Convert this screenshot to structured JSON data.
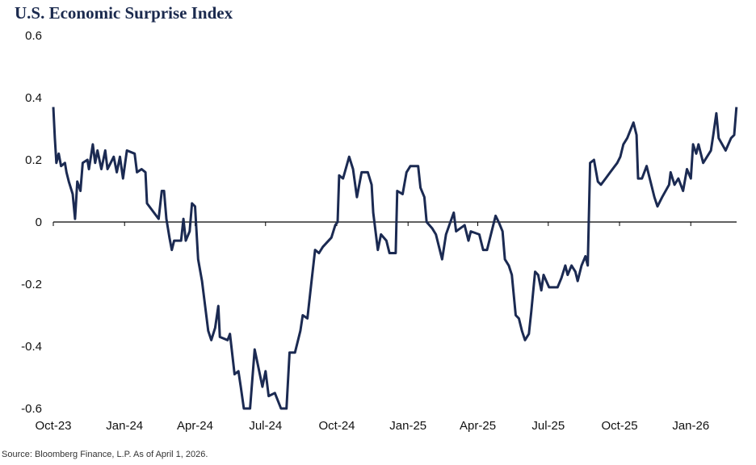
{
  "chart_data": {
    "type": "line",
    "title": "U.S. Economic Surprise Index",
    "source": "Source: Bloomberg Finance, L.P. As of April 1, 2026.",
    "ylim": [
      -0.6,
      0.6
    ],
    "yticks": [
      0.6,
      0.4,
      0.2,
      0,
      -0.2,
      -0.4,
      -0.6
    ],
    "ytick_labels": [
      "0.6",
      "0.4",
      "0.2",
      "0",
      "-0.2",
      "-0.4",
      "-0.6"
    ],
    "xticks": [
      "2023-10-01",
      "2024-01-01",
      "2024-04-01",
      "2024-07-01",
      "2024-10-01",
      "2025-01-01",
      "2025-04-01",
      "2025-07-01",
      "2025-10-01",
      "2026-01-01"
    ],
    "xtick_labels": [
      "Oct-23",
      "Jan-24",
      "Apr-24",
      "Jul-24",
      "Oct-24",
      "Jan-25",
      "Apr-25",
      "Jul-25",
      "Oct-25",
      "Jan-26"
    ],
    "grid": false,
    "line_color": "#1b2a52",
    "series": [
      {
        "x": [
          "2023-10-01",
          "2023-10-03",
          "2023-10-05",
          "2023-10-08",
          "2023-10-11",
          "2023-10-16",
          "2023-10-18",
          "2023-10-21",
          "2023-10-26",
          "2023-10-29",
          "2023-11-01",
          "2023-11-05",
          "2023-11-08",
          "2023-11-14",
          "2023-11-16",
          "2023-11-21",
          "2023-11-24",
          "2023-11-27",
          "2023-12-02",
          "2023-12-07",
          "2023-12-10",
          "2023-12-14",
          "2023-12-18",
          "2023-12-22",
          "2023-12-26",
          "2023-12-30",
          "2024-01-04",
          "2024-01-14",
          "2024-01-17",
          "2024-01-23",
          "2024-01-28",
          "2024-01-30",
          "2024-02-05",
          "2024-02-14",
          "2024-02-18",
          "2024-02-21",
          "2024-02-24",
          "2024-02-28",
          "2024-03-02",
          "2024-03-05",
          "2024-03-14",
          "2024-03-17",
          "2024-03-20",
          "2024-03-25",
          "2024-03-28",
          "2024-04-01",
          "2024-04-05",
          "2024-04-10",
          "2024-04-15",
          "2024-04-18",
          "2024-04-22",
          "2024-04-27",
          "2024-05-01",
          "2024-05-03",
          "2024-05-13",
          "2024-05-16",
          "2024-05-22",
          "2024-05-27",
          "2024-05-30",
          "2024-06-03",
          "2024-06-11",
          "2024-06-17",
          "2024-06-22",
          "2024-06-27",
          "2024-07-01",
          "2024-07-05",
          "2024-07-13",
          "2024-07-21",
          "2024-07-28",
          "2024-08-01",
          "2024-08-08",
          "2024-08-15",
          "2024-08-18",
          "2024-08-24",
          "2024-08-29",
          "2024-09-03",
          "2024-09-08",
          "2024-09-13",
          "2024-09-24",
          "2024-09-29",
          "2024-10-02",
          "2024-10-04",
          "2024-10-09",
          "2024-10-17",
          "2024-10-22",
          "2024-10-27",
          "2024-11-02",
          "2024-11-10",
          "2024-11-15",
          "2024-11-17",
          "2024-11-23",
          "2024-11-27",
          "2024-12-04",
          "2024-12-08",
          "2024-12-16",
          "2024-12-18",
          "2024-12-25",
          "2024-12-30",
          "2025-01-04",
          "2025-01-14",
          "2025-01-17",
          "2025-01-22",
          "2025-01-25",
          "2025-02-01",
          "2025-02-06",
          "2025-02-14",
          "2025-02-19",
          "2025-03-01",
          "2025-03-04",
          "2025-03-15",
          "2025-03-20",
          "2025-03-23",
          "2025-04-03",
          "2025-04-08",
          "2025-04-13",
          "2025-04-18",
          "2025-04-24",
          "2025-04-28",
          "2025-05-03",
          "2025-05-06",
          "2025-05-11",
          "2025-05-15",
          "2025-05-20",
          "2025-05-24",
          "2025-05-28",
          "2025-06-01",
          "2025-06-06",
          "2025-06-09",
          "2025-06-14",
          "2025-06-18",
          "2025-06-22",
          "2025-06-25",
          "2025-07-02",
          "2025-07-13",
          "2025-07-18",
          "2025-07-23",
          "2025-07-26",
          "2025-07-31",
          "2025-08-05",
          "2025-08-08",
          "2025-08-13",
          "2025-08-18",
          "2025-08-21",
          "2025-08-24",
          "2025-08-29",
          "2025-09-03",
          "2025-09-07",
          "2025-09-13",
          "2025-09-19",
          "2025-09-28",
          "2025-10-02",
          "2025-10-06",
          "2025-10-11",
          "2025-10-19",
          "2025-10-23",
          "2025-10-25",
          "2025-10-30",
          "2025-11-05",
          "2025-11-10",
          "2025-11-15",
          "2025-11-19",
          "2025-11-25",
          "2025-12-04",
          "2025-12-06",
          "2025-12-11",
          "2025-12-16",
          "2025-12-22",
          "2025-12-27",
          "2026-01-01",
          "2026-01-04",
          "2026-01-08",
          "2026-01-11",
          "2026-01-17",
          "2026-01-27",
          "2026-01-30",
          "2026-02-03",
          "2026-02-06",
          "2026-02-15",
          "2026-02-22",
          "2026-02-26",
          "2026-03-01"
        ],
        "y": [
          0.37,
          0.27,
          0.19,
          0.22,
          0.18,
          0.19,
          0.16,
          0.13,
          0.09,
          0.01,
          0.13,
          0.1,
          0.19,
          0.2,
          0.17,
          0.25,
          0.19,
          0.23,
          0.17,
          0.23,
          0.17,
          0.19,
          0.21,
          0.16,
          0.21,
          0.14,
          0.23,
          0.22,
          0.16,
          0.17,
          0.16,
          0.06,
          0.04,
          0.01,
          0.1,
          0.1,
          0.01,
          -0.05,
          -0.09,
          -0.06,
          -0.06,
          0.01,
          -0.06,
          -0.03,
          0.06,
          0.05,
          -0.12,
          -0.19,
          -0.29,
          -0.35,
          -0.38,
          -0.34,
          -0.27,
          -0.37,
          -0.38,
          -0.36,
          -0.49,
          -0.48,
          -0.53,
          -0.6,
          -0.6,
          -0.41,
          -0.47,
          -0.53,
          -0.48,
          -0.56,
          -0.55,
          -0.6,
          -0.6,
          -0.42,
          -0.42,
          -0.35,
          -0.3,
          -0.31,
          -0.2,
          -0.09,
          -0.1,
          -0.08,
          -0.05,
          -0.01,
          0.0,
          0.15,
          0.14,
          0.21,
          0.17,
          0.08,
          0.16,
          0.16,
          0.12,
          0.03,
          -0.09,
          -0.04,
          -0.06,
          -0.1,
          -0.1,
          0.1,
          0.09,
          0.16,
          0.18,
          0.18,
          0.11,
          0.08,
          0.0,
          -0.02,
          -0.04,
          -0.12,
          -0.04,
          0.03,
          -0.03,
          -0.01,
          -0.06,
          -0.03,
          -0.04,
          -0.09,
          -0.09,
          -0.04,
          0.02,
          0.0,
          -0.03,
          -0.12,
          -0.14,
          -0.17,
          -0.3,
          -0.31,
          -0.35,
          -0.38,
          -0.36,
          -0.29,
          -0.16,
          -0.17,
          -0.22,
          -0.17,
          -0.21,
          -0.21,
          -0.18,
          -0.14,
          -0.17,
          -0.14,
          -0.16,
          -0.19,
          -0.14,
          -0.11,
          -0.14,
          0.19,
          0.2,
          0.13,
          0.12,
          0.14,
          0.16,
          0.19,
          0.21,
          0.25,
          0.27,
          0.32,
          0.28,
          0.14,
          0.14,
          0.18,
          0.13,
          0.08,
          0.05,
          0.08,
          0.12,
          0.16,
          0.12,
          0.14,
          0.1,
          0.17,
          0.14,
          0.25,
          0.22,
          0.25,
          0.19,
          0.23,
          0.28,
          0.35,
          0.27,
          0.23,
          0.27,
          0.28,
          0.37
        ]
      }
    ]
  }
}
